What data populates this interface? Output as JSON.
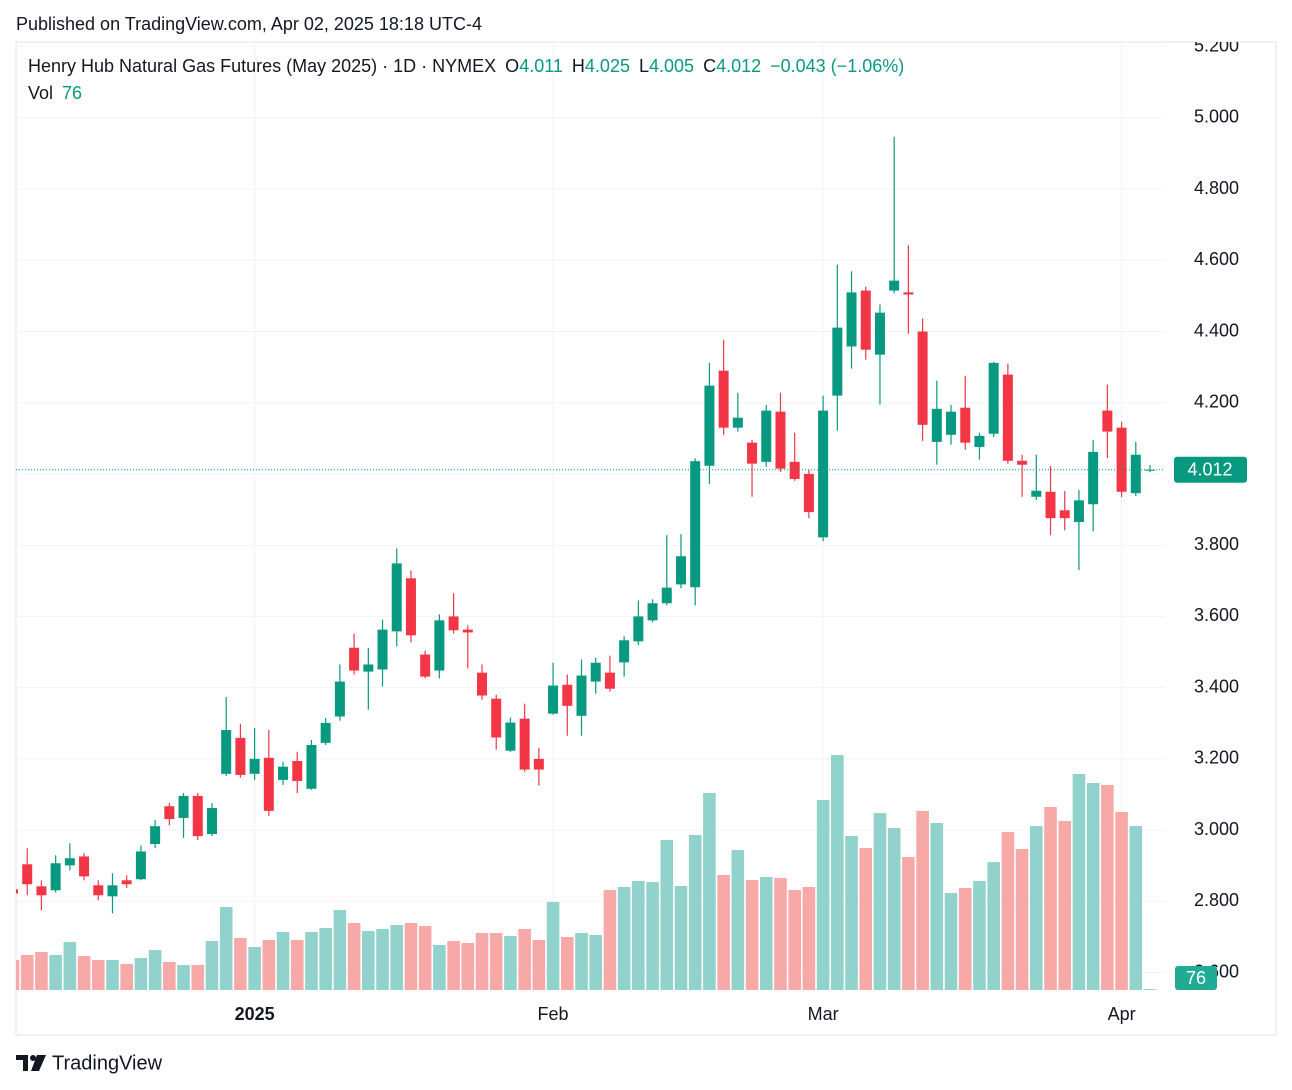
{
  "published": "Published on TradingView.com, Apr 02, 2025 18:18 UTC-4",
  "brand": "TradingView",
  "chart_data": {
    "type": "candlestick",
    "title": "Henry Hub Natural Gas Futures (May 2025) · 1D · NYMEX",
    "legend_labels": [
      "O",
      "H",
      "L",
      "C"
    ],
    "change_label": "−0.043 (−1.06%)",
    "volume_label": "Vol",
    "up_color": "#089981",
    "down_color": "#f23645",
    "volume_up_color": "#92d2cc",
    "volume_down_color": "#f7a9a7",
    "grid": true,
    "ylim": [
      2.551,
      5.213
    ],
    "yticks": [
      {
        "value": 2.6,
        "label": "2.600"
      },
      {
        "value": 2.8,
        "label": "2.800"
      },
      {
        "value": 3.0,
        "label": "3.000"
      },
      {
        "value": 3.2,
        "label": "3.200"
      },
      {
        "value": 3.4,
        "label": "3.400"
      },
      {
        "value": 3.6,
        "label": "3.600"
      },
      {
        "value": 3.8,
        "label": "3.800"
      },
      {
        "value": 4.0,
        "label": "4.000"
      },
      {
        "value": 4.2,
        "label": "4.200"
      },
      {
        "value": 4.4,
        "label": "4.400"
      },
      {
        "value": 4.6,
        "label": "4.600"
      },
      {
        "value": 4.8,
        "label": "4.800"
      },
      {
        "value": 5.0,
        "label": "5.000"
      },
      {
        "value": 5.2,
        "label": "5.200"
      }
    ],
    "categories": [
      null,
      null,
      null,
      null,
      null,
      null,
      null,
      null,
      null,
      null,
      null,
      null,
      null,
      null,
      null,
      null,
      null,
      "2025",
      null,
      null,
      null,
      null,
      null,
      null,
      null,
      null,
      null,
      null,
      null,
      null,
      null,
      null,
      null,
      null,
      null,
      null,
      null,
      null,
      "Feb",
      null,
      null,
      null,
      null,
      null,
      null,
      null,
      null,
      null,
      null,
      null,
      null,
      null,
      null,
      null,
      null,
      null,
      null,
      "Mar",
      null,
      null,
      null,
      null,
      null,
      null,
      null,
      null,
      null,
      null,
      null,
      null,
      null,
      null,
      null,
      null,
      null,
      null,
      null,
      null,
      "Apr",
      null,
      null
    ],
    "open": [
      2.834,
      2.904,
      2.842,
      2.831,
      2.901,
      2.926,
      2.845,
      2.814,
      2.859,
      2.862,
      2.961,
      3.067,
      3.034,
      3.096,
      2.989,
      3.158,
      3.259,
      3.158,
      3.203,
      3.141,
      3.194,
      3.116,
      3.245,
      3.319,
      3.512,
      3.445,
      3.451,
      3.558,
      3.707,
      3.493,
      3.448,
      3.6,
      3.563,
      3.442,
      3.369,
      3.223,
      3.313,
      3.2,
      3.327,
      3.408,
      3.321,
      3.417,
      3.442,
      3.471,
      3.53,
      3.589,
      3.637,
      3.69,
      3.682,
      4.023,
      4.29,
      4.13,
      4.088,
      4.034,
      4.175,
      4.034,
      4.0,
      3.822,
      4.22,
      4.358,
      4.515,
      4.335,
      4.515,
      4.51,
      4.4,
      4.09,
      4.11,
      4.186,
      4.076,
      4.113,
      4.279,
      4.037,
      3.936,
      3.95,
      3.898,
      3.865,
      3.915,
      4.178,
      4.13,
      3.946,
      4.011
    ],
    "high": [
      2.839,
      2.949,
      2.859,
      2.929,
      2.963,
      2.935,
      2.859,
      2.879,
      2.873,
      2.957,
      3.028,
      3.076,
      3.104,
      3.104,
      3.076,
      3.374,
      3.298,
      3.287,
      3.281,
      3.192,
      3.22,
      3.253,
      3.315,
      3.465,
      3.552,
      3.512,
      3.591,
      3.791,
      3.729,
      3.504,
      3.606,
      3.665,
      3.575,
      3.465,
      3.38,
      3.316,
      3.355,
      3.231,
      3.47,
      3.437,
      3.479,
      3.484,
      3.49,
      3.544,
      3.645,
      3.648,
      3.828,
      3.831,
      4.044,
      4.312,
      4.377,
      4.228,
      4.096,
      4.194,
      4.228,
      4.116,
      4.011,
      4.22,
      4.588,
      4.569,
      4.526,
      4.476,
      4.947,
      4.642,
      4.437,
      4.262,
      4.194,
      4.276,
      4.116,
      4.315,
      4.31,
      4.054,
      4.054,
      4.022,
      3.952,
      3.955,
      4.096,
      4.251,
      4.147,
      4.09,
      4.025
    ],
    "low": [
      2.817,
      2.817,
      2.775,
      2.825,
      2.887,
      2.859,
      2.803,
      2.766,
      2.837,
      2.859,
      2.949,
      3.014,
      2.978,
      2.972,
      2.983,
      3.152,
      3.147,
      3.141,
      3.04,
      3.127,
      3.104,
      3.113,
      3.239,
      3.307,
      3.437,
      3.338,
      3.403,
      3.516,
      3.527,
      3.426,
      3.426,
      3.552,
      3.454,
      3.366,
      3.226,
      3.22,
      3.164,
      3.125,
      3.324,
      3.265,
      3.265,
      3.383,
      3.389,
      3.431,
      3.519,
      3.583,
      3.631,
      3.679,
      3.631,
      3.972,
      4.11,
      4.119,
      3.936,
      4.02,
      4.006,
      3.981,
      3.876,
      3.811,
      4.122,
      4.296,
      4.321,
      4.195,
      4.507,
      4.394,
      4.093,
      4.026,
      4.082,
      4.068,
      4.04,
      4.104,
      4.029,
      3.936,
      3.927,
      3.828,
      3.842,
      3.73,
      3.839,
      4.045,
      3.935,
      3.938,
      4.005
    ],
    "close": [
      2.822,
      2.848,
      2.817,
      2.907,
      2.921,
      2.87,
      2.817,
      2.845,
      2.848,
      2.94,
      3.011,
      3.031,
      3.096,
      2.983,
      3.062,
      3.281,
      3.155,
      3.2,
      3.054,
      3.178,
      3.138,
      3.239,
      3.301,
      3.417,
      3.448,
      3.465,
      3.563,
      3.749,
      3.547,
      3.431,
      3.589,
      3.561,
      3.555,
      3.378,
      3.26,
      3.302,
      3.17,
      3.17,
      3.406,
      3.349,
      3.434,
      3.47,
      3.397,
      3.533,
      3.6,
      3.637,
      3.681,
      3.769,
      4.036,
      4.248,
      4.13,
      4.158,
      4.029,
      4.178,
      4.015,
      3.986,
      3.893,
      4.178,
      4.411,
      4.51,
      4.349,
      4.453,
      4.543,
      4.504,
      4.138,
      4.183,
      4.175,
      4.088,
      4.107,
      4.312,
      4.037,
      4.026,
      3.953,
      3.876,
      3.876,
      3.926,
      4.062,
      4.119,
      3.95,
      4.054,
      4.012
    ],
    "volume": [
      2400,
      2800,
      3040,
      2800,
      3840,
      2720,
      2400,
      2400,
      2080,
      2560,
      3200,
      2240,
      2000,
      2000,
      3920,
      6640,
      4160,
      3440,
      4000,
      4640,
      4000,
      4640,
      4960,
      6400,
      5360,
      4720,
      4880,
      5200,
      5360,
      5120,
      3600,
      3920,
      3760,
      4560,
      4560,
      4320,
      4880,
      4000,
      7040,
      4240,
      4560,
      4400,
      8000,
      8240,
      8720,
      8640,
      12000,
      8320,
      12400,
      15760,
      9200,
      11200,
      8800,
      9040,
      8960,
      8000,
      8240,
      15200,
      18800,
      12320,
      11360,
      14160,
      12960,
      10640,
      14320,
      13360,
      7760,
      8160,
      8720,
      10240,
      12640,
      11280,
      13120,
      14640,
      13520,
      17280,
      16560,
      16400,
      14240,
      13120,
      76
    ]
  }
}
